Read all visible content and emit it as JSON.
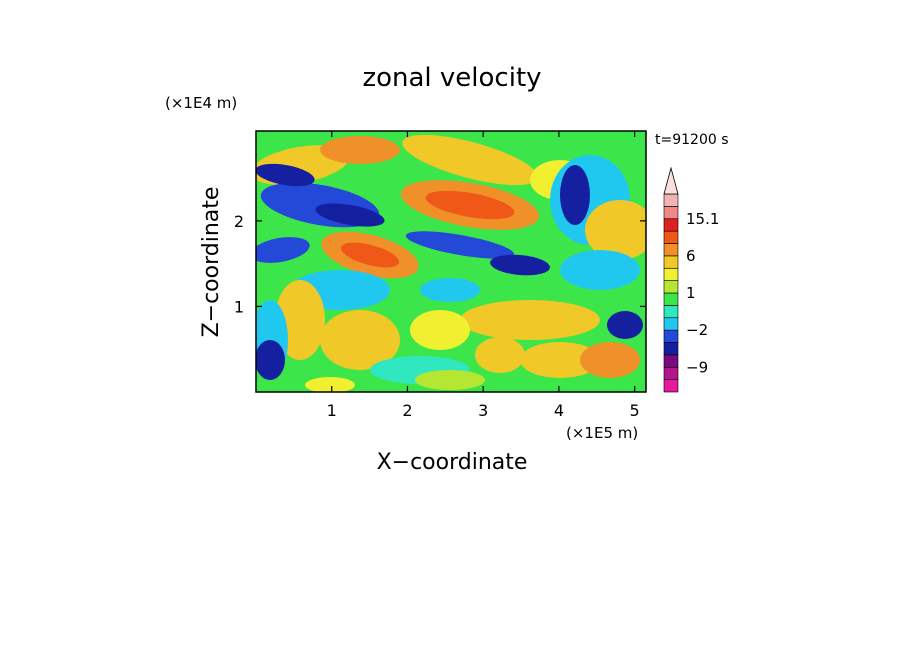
{
  "chart_data": {
    "type": "heatmap",
    "title": "zonal velocity",
    "time_label": "t=91200 s",
    "xlabel": "X−coordinate",
    "ylabel": "Z−coordinate",
    "x_multiplier": "(×1E5 m)",
    "y_multiplier": "(×1E4 m)",
    "xlim": [
      0,
      5.15
    ],
    "ylim": [
      0,
      3.05
    ],
    "x_ticks": [
      1,
      2,
      3,
      4,
      5
    ],
    "x_tick_labels": [
      "1",
      "2",
      "3",
      "4",
      "5"
    ],
    "y_ticks": [
      1,
      2
    ],
    "y_tick_labels": [
      "1",
      "2"
    ],
    "colorbar": {
      "extend": "max",
      "levels_bottom_to_top": [
        -15,
        -12,
        -9,
        -6,
        -4,
        -2,
        -1,
        0,
        1,
        2,
        4,
        6,
        9,
        12,
        15.1
      ],
      "colors_bottom_to_top": [
        "#e8189c",
        "#b4148c",
        "#7a0a82",
        "#1420a0",
        "#2448d8",
        "#20c8f0",
        "#30e8c0",
        "#3ce64a",
        "#b4e632",
        "#f0f030",
        "#f0c828",
        "#f09028",
        "#f05818",
        "#e02020",
        "#f08888",
        "#f0b4b4",
        "#fce0e0"
      ],
      "labeled_levels": [
        "15.1",
        "6",
        "1",
        "−2",
        "−9"
      ]
    }
  }
}
